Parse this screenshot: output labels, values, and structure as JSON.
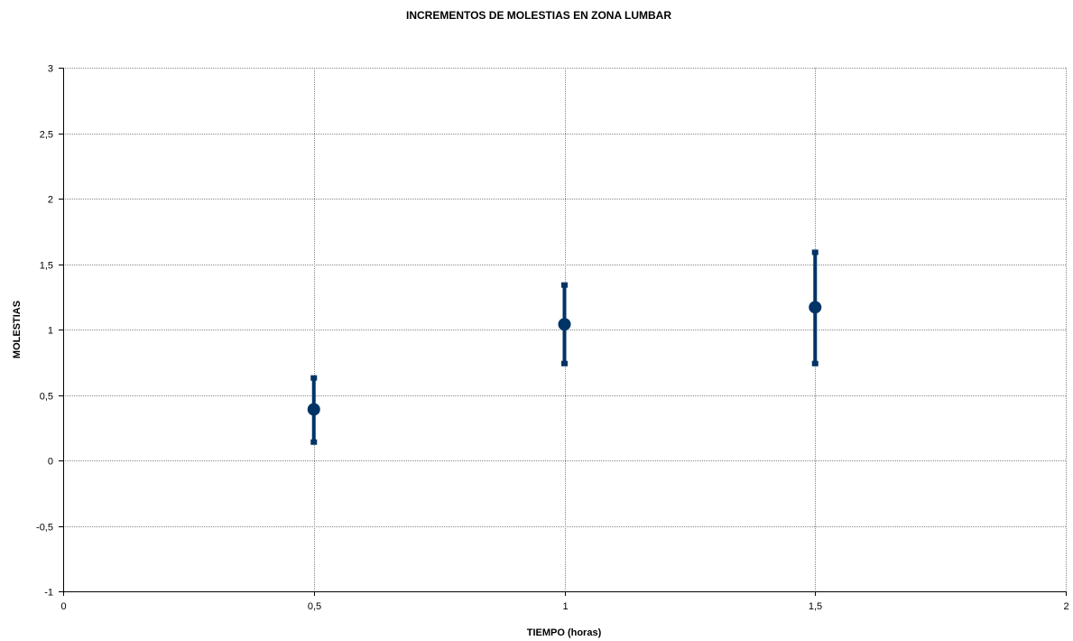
{
  "chart_data": {
    "type": "scatter",
    "title": "INCREMENTOS DE MOLESTIAS EN ZONA LUMBAR",
    "xlabel": "TIEMPO (horas)",
    "ylabel": "MOLESTIAS",
    "xlim": [
      0,
      2
    ],
    "ylim": [
      -1,
      3
    ],
    "x_ticks": [
      "0",
      "0,5",
      "1",
      "1,5",
      "2"
    ],
    "y_ticks": [
      "-1",
      "-0,5",
      "0",
      "0,5",
      "1",
      "1,5",
      "2",
      "2,5",
      "3"
    ],
    "grid": true,
    "legend": "none",
    "series": [
      {
        "color": "#003366",
        "points": [
          {
            "x": 0.5,
            "y": 0.39,
            "y_low": 0.14,
            "y_high": 0.63
          },
          {
            "x": 1.0,
            "y": 1.04,
            "y_low": 0.74,
            "y_high": 1.34
          },
          {
            "x": 1.5,
            "y": 1.17,
            "y_low": 0.74,
            "y_high": 1.59
          }
        ]
      }
    ]
  }
}
